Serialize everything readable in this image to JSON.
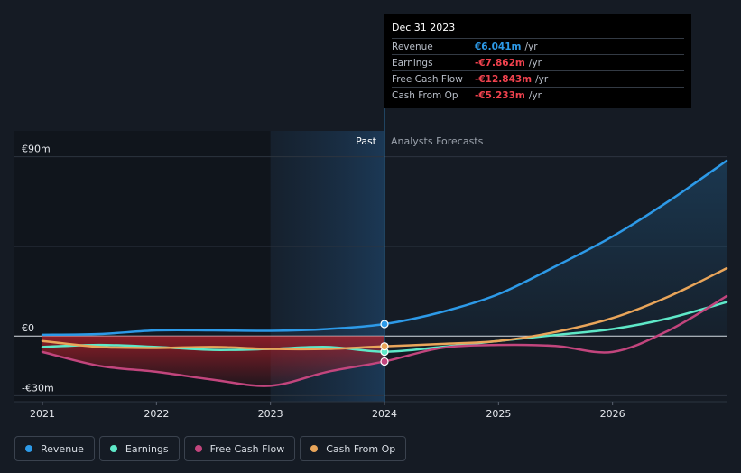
{
  "chart_data": {
    "type": "line",
    "y_unit_prefix": "€",
    "y_unit_suffix": "m",
    "ylim": [
      -33,
      103
    ],
    "xlim": [
      2021.0,
      2027.0
    ],
    "y_tick_labels": [
      {
        "value": 90,
        "label": "€90m"
      },
      {
        "value": 0,
        "label": "€0"
      },
      {
        "value": -30,
        "label": "-€30m"
      }
    ],
    "x_tick_labels": [
      "2021",
      "2022",
      "2023",
      "2024",
      "2025",
      "2026"
    ],
    "x_tick_values": [
      2021,
      2022,
      2023,
      2024,
      2025,
      2026
    ],
    "past_label": "Past",
    "forecast_label": "Analysts Forecasts",
    "past_start": 2021.0,
    "highlight_start": 2023.0,
    "divider_x": 2024.0,
    "series": [
      {
        "name": "Revenue",
        "color": "#2d9ae8",
        "points": [
          [
            2021.0,
            0.6
          ],
          [
            2021.5,
            1.0
          ],
          [
            2022.0,
            2.8
          ],
          [
            2022.5,
            2.8
          ],
          [
            2023.0,
            2.6
          ],
          [
            2023.5,
            3.5
          ],
          [
            2024.0,
            6.0
          ],
          [
            2024.5,
            12.0
          ],
          [
            2025.0,
            21.0
          ],
          [
            2025.5,
            35.0
          ],
          [
            2026.0,
            50.0
          ],
          [
            2026.5,
            68.0
          ],
          [
            2027.0,
            88.0
          ]
        ],
        "marker_at": 2024.0,
        "fill_area": true
      },
      {
        "name": "Earnings",
        "color": "#5ee8c8",
        "points": [
          [
            2021.0,
            -5.5
          ],
          [
            2021.5,
            -4.5
          ],
          [
            2022.0,
            -5.5
          ],
          [
            2022.5,
            -7.0
          ],
          [
            2023.0,
            -6.5
          ],
          [
            2023.5,
            -5.5
          ],
          [
            2024.0,
            -7.9
          ],
          [
            2024.5,
            -5.5
          ],
          [
            2025.0,
            -2.5
          ],
          [
            2025.5,
            0.5
          ],
          [
            2026.0,
            3.5
          ],
          [
            2026.5,
            9.0
          ],
          [
            2027.0,
            17.0
          ]
        ],
        "marker_at": 2024.0,
        "fill_area": false
      },
      {
        "name": "Free Cash Flow",
        "color": "#c2457d",
        "points": [
          [
            2021.0,
            -8.0
          ],
          [
            2021.5,
            -15.0
          ],
          [
            2022.0,
            -18.0
          ],
          [
            2022.5,
            -22.0
          ],
          [
            2023.0,
            -25.0
          ],
          [
            2023.5,
            -18.0
          ],
          [
            2024.0,
            -12.8
          ],
          [
            2024.5,
            -6.0
          ],
          [
            2025.0,
            -4.5
          ],
          [
            2025.5,
            -5.0
          ],
          [
            2026.0,
            -8.0
          ],
          [
            2026.5,
            3.0
          ],
          [
            2027.0,
            20.0
          ]
        ],
        "marker_at": 2024.0,
        "fill_area": false
      },
      {
        "name": "Cash From Op",
        "color": "#e9a55a",
        "points": [
          [
            2021.0,
            -2.5
          ],
          [
            2021.5,
            -5.5
          ],
          [
            2022.0,
            -6.0
          ],
          [
            2022.5,
            -5.5
          ],
          [
            2023.0,
            -6.5
          ],
          [
            2023.5,
            -6.5
          ],
          [
            2024.0,
            -5.2
          ],
          [
            2024.5,
            -4.0
          ],
          [
            2025.0,
            -2.5
          ],
          [
            2025.5,
            2.0
          ],
          [
            2026.0,
            9.0
          ],
          [
            2026.5,
            20.0
          ],
          [
            2027.0,
            34.0
          ]
        ],
        "marker_at": 2024.0,
        "fill_area": false
      }
    ]
  },
  "tooltip": {
    "date": "Dec 31 2023",
    "rows": [
      {
        "label": "Revenue",
        "value": "€6.041m",
        "unit": "/yr",
        "color": "#2d9ae8"
      },
      {
        "label": "Earnings",
        "value": "-€7.862m",
        "unit": "/yr",
        "color": "#f0424e"
      },
      {
        "label": "Free Cash Flow",
        "value": "-€12.843m",
        "unit": "/yr",
        "color": "#f0424e"
      },
      {
        "label": "Cash From Op",
        "value": "-€5.233m",
        "unit": "/yr",
        "color": "#f0424e"
      }
    ]
  },
  "legend": [
    {
      "label": "Revenue",
      "color": "#2d9ae8"
    },
    {
      "label": "Earnings",
      "color": "#5ee8c8"
    },
    {
      "label": "Free Cash Flow",
      "color": "#c2457d"
    },
    {
      "label": "Cash From Op",
      "color": "#e9a55a"
    }
  ]
}
